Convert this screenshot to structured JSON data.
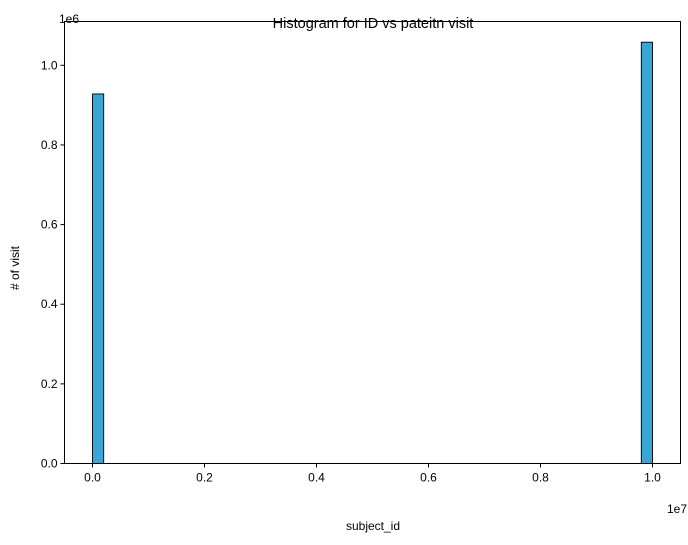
{
  "chart_data": {
    "type": "bar",
    "title": "Histogram for ID vs pateitn visit",
    "xlabel": "subject_id",
    "ylabel": "# of visit",
    "x_multiplier_label": "1e7",
    "y_multiplier_label": "1e6",
    "x_scale": 10000000,
    "y_scale": 1000000,
    "xlim": [
      -0.05,
      1.05
    ],
    "ylim": [
      0,
      1.11
    ],
    "x_ticks": [
      0.0,
      0.2,
      0.4,
      0.6,
      0.8,
      1.0
    ],
    "x_tick_labels": [
      "0.0",
      "0.2",
      "0.4",
      "0.6",
      "0.8",
      "1.0"
    ],
    "y_ticks": [
      0.0,
      0.2,
      0.4,
      0.6,
      0.8,
      1.0
    ],
    "y_tick_labels": [
      "0.0",
      "0.2",
      "0.4",
      "0.6",
      "0.8",
      "1.0"
    ],
    "bins": [
      {
        "x_start": 0.0,
        "x_end": 0.02,
        "value": 0.928
      },
      {
        "x_start": 0.98,
        "x_end": 1.0,
        "value": 1.058
      }
    ],
    "colors": {
      "bar_fill": "#3aa6d8",
      "bar_edge": "#000000",
      "axis": "#000000",
      "background": "#ffffff"
    },
    "grid": false,
    "legend": "none"
  }
}
